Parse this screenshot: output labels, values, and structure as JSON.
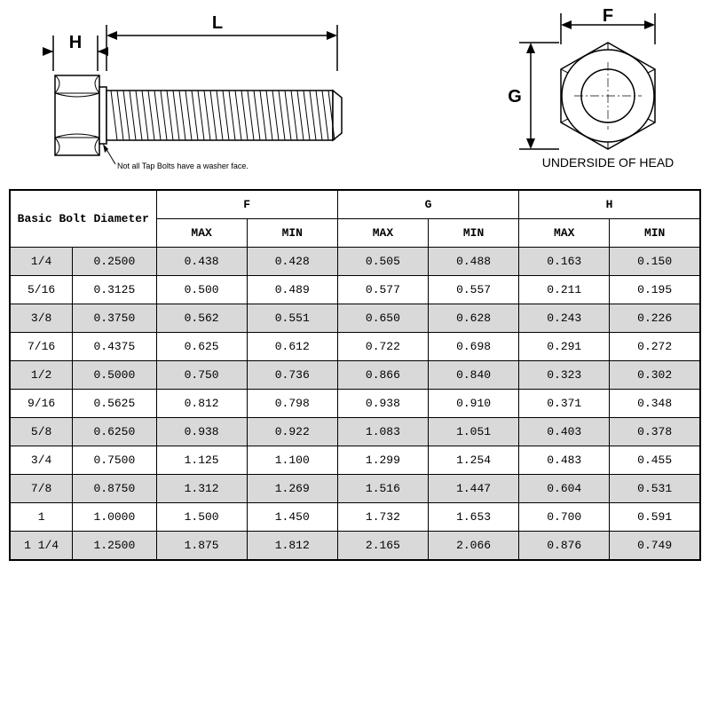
{
  "diagram": {
    "side_view": {
      "label_L": "L",
      "label_H": "H",
      "note": "Not all Tap Bolts have a washer face."
    },
    "top_view": {
      "label_F": "F",
      "label_G": "G",
      "caption": "UNDERSIDE OF HEAD"
    },
    "colors": {
      "line": "#000000",
      "fill": "#ffffff",
      "background": "#ffffff"
    },
    "line_width": 1.5
  },
  "table": {
    "header": {
      "basic": "Basic Bolt Diameter",
      "F": "F",
      "G": "G",
      "H": "H",
      "MAX": "MAX",
      "MIN": "MIN"
    },
    "colors": {
      "border": "#000000",
      "row_shade": "#d9d9d9",
      "row_plain": "#ffffff"
    },
    "font": {
      "family": "Courier New",
      "size_pt": 10
    },
    "rows": [
      {
        "frac": "1/4",
        "dec": "0.2500",
        "F_max": "0.438",
        "F_min": "0.428",
        "G_max": "0.505",
        "G_min": "0.488",
        "H_max": "0.163",
        "H_min": "0.150"
      },
      {
        "frac": "5/16",
        "dec": "0.3125",
        "F_max": "0.500",
        "F_min": "0.489",
        "G_max": "0.577",
        "G_min": "0.557",
        "H_max": "0.211",
        "H_min": "0.195"
      },
      {
        "frac": "3/8",
        "dec": "0.3750",
        "F_max": "0.562",
        "F_min": "0.551",
        "G_max": "0.650",
        "G_min": "0.628",
        "H_max": "0.243",
        "H_min": "0.226"
      },
      {
        "frac": "7/16",
        "dec": "0.4375",
        "F_max": "0.625",
        "F_min": "0.612",
        "G_max": "0.722",
        "G_min": "0.698",
        "H_max": "0.291",
        "H_min": "0.272"
      },
      {
        "frac": "1/2",
        "dec": "0.5000",
        "F_max": "0.750",
        "F_min": "0.736",
        "G_max": "0.866",
        "G_min": "0.840",
        "H_max": "0.323",
        "H_min": "0.302"
      },
      {
        "frac": "9/16",
        "dec": "0.5625",
        "F_max": "0.812",
        "F_min": "0.798",
        "G_max": "0.938",
        "G_min": "0.910",
        "H_max": "0.371",
        "H_min": "0.348"
      },
      {
        "frac": "5/8",
        "dec": "0.6250",
        "F_max": "0.938",
        "F_min": "0.922",
        "G_max": "1.083",
        "G_min": "1.051",
        "H_max": "0.403",
        "H_min": "0.378"
      },
      {
        "frac": "3/4",
        "dec": "0.7500",
        "F_max": "1.125",
        "F_min": "1.100",
        "G_max": "1.299",
        "G_min": "1.254",
        "H_max": "0.483",
        "H_min": "0.455"
      },
      {
        "frac": "7/8",
        "dec": "0.8750",
        "F_max": "1.312",
        "F_min": "1.269",
        "G_max": "1.516",
        "G_min": "1.447",
        "H_max": "0.604",
        "H_min": "0.531"
      },
      {
        "frac": "1",
        "dec": "1.0000",
        "F_max": "1.500",
        "F_min": "1.450",
        "G_max": "1.732",
        "G_min": "1.653",
        "H_max": "0.700",
        "H_min": "0.591"
      },
      {
        "frac": "1 1/4",
        "dec": "1.2500",
        "F_max": "1.875",
        "F_min": "1.812",
        "G_max": "2.165",
        "G_min": "2.066",
        "H_max": "0.876",
        "H_min": "0.749"
      }
    ]
  }
}
